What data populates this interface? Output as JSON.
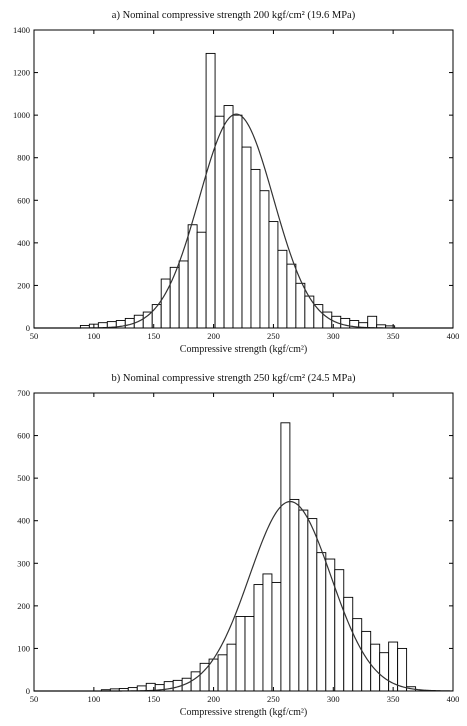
{
  "chart_data": [
    {
      "type": "bar",
      "title": "a) Nominal compressive strength 200 kgf/cm²  (19.6 MPa)",
      "xlabel": "Compressive strength (kgf/cm²)",
      "ylabel": "",
      "xlim": [
        50,
        400
      ],
      "ylim": [
        0,
        1400
      ],
      "xticks": [
        50,
        100,
        150,
        200,
        250,
        300,
        350,
        400
      ],
      "yticks": [
        0,
        200,
        400,
        600,
        800,
        1000,
        1200,
        1400
      ],
      "bin_width": 7.5,
      "bins": [
        {
          "x": 92.5,
          "value": 12
        },
        {
          "x": 100,
          "value": 18
        },
        {
          "x": 107.5,
          "value": 25
        },
        {
          "x": 115,
          "value": 30
        },
        {
          "x": 122.5,
          "value": 35
        },
        {
          "x": 130,
          "value": 45
        },
        {
          "x": 137.5,
          "value": 60
        },
        {
          "x": 145,
          "value": 75
        },
        {
          "x": 152.5,
          "value": 110
        },
        {
          "x": 160,
          "value": 230
        },
        {
          "x": 167.5,
          "value": 285
        },
        {
          "x": 175,
          "value": 315
        },
        {
          "x": 182.5,
          "value": 485
        },
        {
          "x": 190,
          "value": 450
        },
        {
          "x": 197.5,
          "value": 1290
        },
        {
          "x": 205,
          "value": 995
        },
        {
          "x": 212.5,
          "value": 1045
        },
        {
          "x": 220,
          "value": 1000
        },
        {
          "x": 227.5,
          "value": 850
        },
        {
          "x": 235,
          "value": 745
        },
        {
          "x": 242.5,
          "value": 645
        },
        {
          "x": 250,
          "value": 500
        },
        {
          "x": 257.5,
          "value": 365
        },
        {
          "x": 265,
          "value": 300
        },
        {
          "x": 272.5,
          "value": 210
        },
        {
          "x": 280,
          "value": 150
        },
        {
          "x": 287.5,
          "value": 110
        },
        {
          "x": 295,
          "value": 75
        },
        {
          "x": 302.5,
          "value": 55
        },
        {
          "x": 310,
          "value": 45
        },
        {
          "x": 317.5,
          "value": 35
        },
        {
          "x": 325,
          "value": 25
        },
        {
          "x": 332.5,
          "value": 55
        },
        {
          "x": 340,
          "value": 15
        },
        {
          "x": 347.5,
          "value": 10
        }
      ],
      "fit_curve": {
        "type": "normal",
        "mean": 219,
        "peak": 1005,
        "sd": 31
      }
    },
    {
      "type": "bar",
      "title": "b) Nominal compressive strength 250 kgf/cm²  (24.5 MPa)",
      "xlabel": "Compressive strength (kgf/cm²)",
      "ylabel": "",
      "xlim": [
        50,
        400
      ],
      "ylim": [
        0,
        700
      ],
      "xticks": [
        50,
        100,
        150,
        200,
        250,
        300,
        350,
        400
      ],
      "yticks": [
        0,
        100,
        200,
        300,
        400,
        500,
        600,
        700
      ],
      "bin_width": 7.5,
      "bins": [
        {
          "x": 110,
          "value": 3
        },
        {
          "x": 117.5,
          "value": 5
        },
        {
          "x": 125,
          "value": 6
        },
        {
          "x": 132.5,
          "value": 8
        },
        {
          "x": 140,
          "value": 12
        },
        {
          "x": 147.5,
          "value": 18
        },
        {
          "x": 155,
          "value": 15
        },
        {
          "x": 162.5,
          "value": 22
        },
        {
          "x": 170,
          "value": 25
        },
        {
          "x": 177.5,
          "value": 30
        },
        {
          "x": 185,
          "value": 45
        },
        {
          "x": 192.5,
          "value": 65
        },
        {
          "x": 200,
          "value": 75
        },
        {
          "x": 207.5,
          "value": 85
        },
        {
          "x": 215,
          "value": 110
        },
        {
          "x": 222.5,
          "value": 175
        },
        {
          "x": 230,
          "value": 175
        },
        {
          "x": 237.5,
          "value": 250
        },
        {
          "x": 245,
          "value": 275
        },
        {
          "x": 252.5,
          "value": 255
        },
        {
          "x": 260,
          "value": 630
        },
        {
          "x": 267.5,
          "value": 450
        },
        {
          "x": 275,
          "value": 425
        },
        {
          "x": 282.5,
          "value": 405
        },
        {
          "x": 290,
          "value": 325
        },
        {
          "x": 297.5,
          "value": 310
        },
        {
          "x": 305,
          "value": 285
        },
        {
          "x": 312.5,
          "value": 220
        },
        {
          "x": 320,
          "value": 170
        },
        {
          "x": 327.5,
          "value": 140
        },
        {
          "x": 335,
          "value": 110
        },
        {
          "x": 342.5,
          "value": 90
        },
        {
          "x": 350,
          "value": 115
        },
        {
          "x": 357.5,
          "value": 100
        },
        {
          "x": 365,
          "value": 10
        }
      ],
      "fit_curve": {
        "type": "normal",
        "mean": 264,
        "peak": 445,
        "sd": 34
      }
    }
  ]
}
